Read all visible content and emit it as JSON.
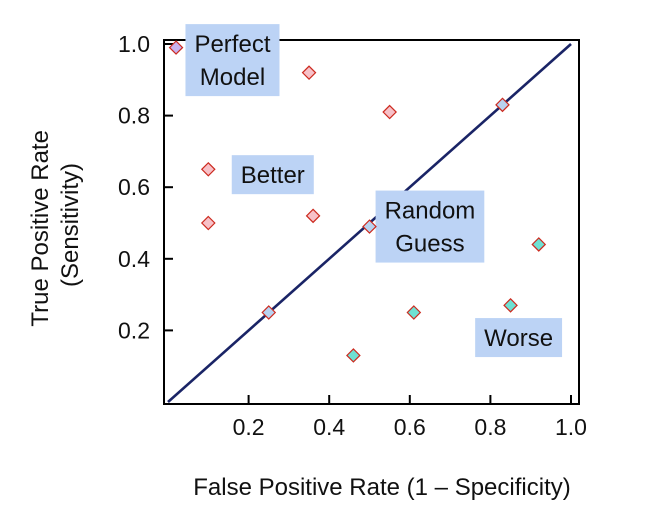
{
  "chart_data": {
    "type": "scatter",
    "title": "",
    "xlabel": "False Positive Rate (1 – Specificity)",
    "ylabel_lines": [
      "True Positive Rate",
      "(Sensitivity)"
    ],
    "xlim": [
      0,
      1.0
    ],
    "ylim": [
      0,
      1.0
    ],
    "xticks": [
      "0.2",
      "0.4",
      "0.6",
      "0.8",
      "1.0"
    ],
    "yticks": [
      "0.2",
      "0.4",
      "0.6",
      "0.8",
      "1.0"
    ],
    "grid": false,
    "reference_line": {
      "from": [
        0,
        0
      ],
      "to": [
        1,
        1
      ],
      "color": "#1a2466"
    },
    "series": [
      {
        "role": "perfect",
        "color": "#c8b2ee",
        "points": [
          [
            0.02,
            0.99
          ]
        ]
      },
      {
        "role": "better",
        "color": "#f7c1c8",
        "points": [
          [
            0.35,
            0.92
          ],
          [
            0.55,
            0.81
          ],
          [
            0.1,
            0.65
          ],
          [
            0.1,
            0.5
          ],
          [
            0.36,
            0.52
          ]
        ]
      },
      {
        "role": "random",
        "color": "#b8d2f0",
        "points": [
          [
            0.83,
            0.83
          ],
          [
            0.5,
            0.49
          ],
          [
            0.25,
            0.25
          ]
        ]
      },
      {
        "role": "worse",
        "color": "#6fe1d3",
        "points": [
          [
            0.92,
            0.44
          ],
          [
            0.85,
            0.27
          ],
          [
            0.61,
            0.25
          ],
          [
            0.46,
            0.13
          ]
        ]
      }
    ],
    "annotations": [
      {
        "lines": [
          "Perfect",
          "Model"
        ],
        "anchor": [
          0.16,
          0.955
        ]
      },
      {
        "lines": [
          "Better"
        ],
        "anchor": [
          0.26,
          0.635
        ]
      },
      {
        "lines": [
          "Random",
          "Guess"
        ],
        "anchor": [
          0.65,
          0.49
        ]
      },
      {
        "lines": [
          "Worse"
        ],
        "anchor": [
          0.87,
          0.18
        ]
      }
    ],
    "colors": {
      "label_bg": "#bcd3f5",
      "axis": "#000000",
      "marker_stroke": "#cc2a1f"
    }
  }
}
